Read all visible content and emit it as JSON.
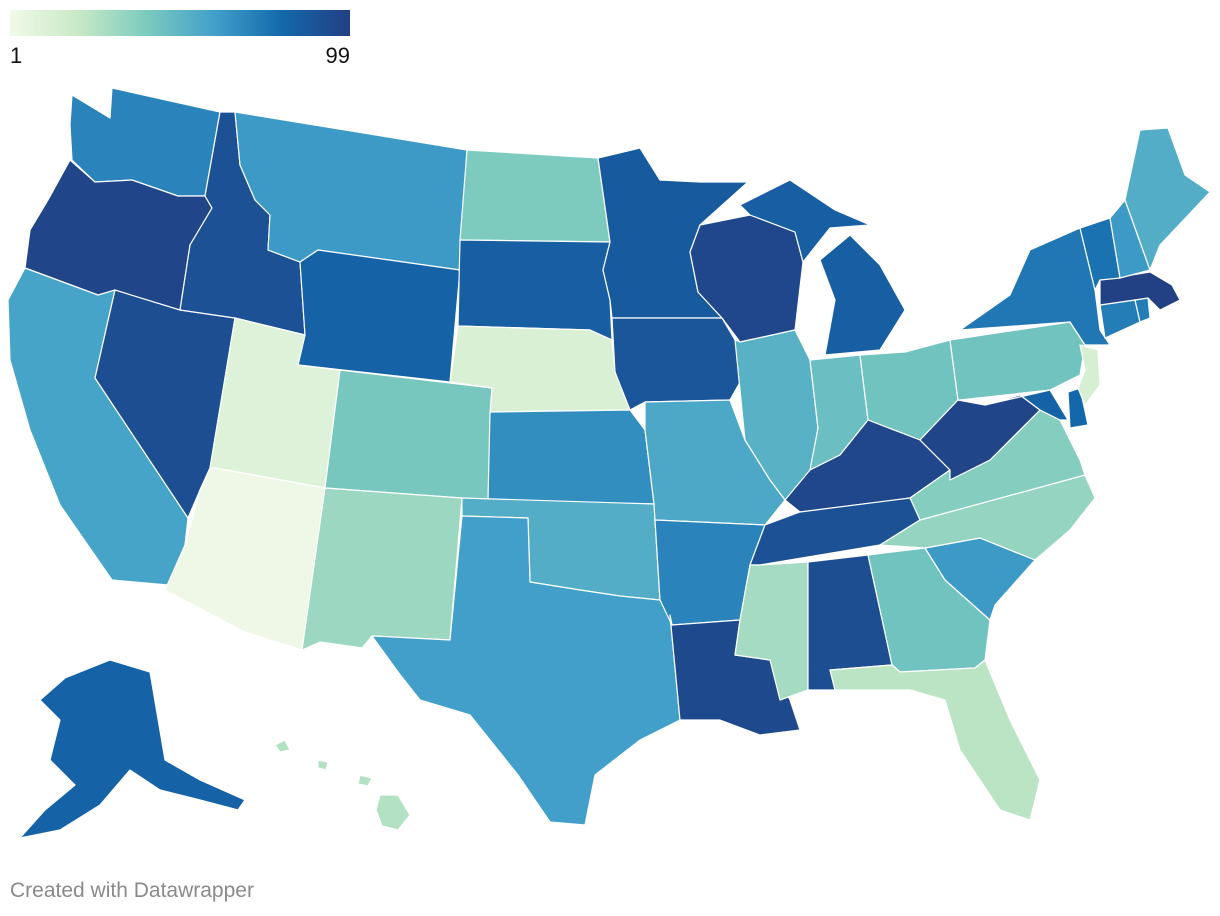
{
  "legend": {
    "min_label": "1",
    "max_label": "99",
    "min": 1,
    "max": 99,
    "gradient": [
      "#f1f9e9",
      "#c8e9c6",
      "#7ccbbe",
      "#42a0ca",
      "#1368ab",
      "#233f83"
    ]
  },
  "credit": "Created with Datawrapper",
  "chart_data": {
    "type": "choropleth",
    "colors": [
      "#f1f9e9",
      "#c8e9c6",
      "#7ccbbe",
      "#42a0ca",
      "#1368ab",
      "#233f83"
    ],
    "values": {
      "WA": 70,
      "OR": 96,
      "CA": 58,
      "NV": 92,
      "ID": 90,
      "MT": 62,
      "WY": 82,
      "UT": 10,
      "AZ": 2,
      "CO": 42,
      "NM": 32,
      "ND": 40,
      "SD": 84,
      "NE": 12,
      "KS": 66,
      "OK": 54,
      "TX": 60,
      "MN": 86,
      "IA": 88,
      "MO": 56,
      "AR": 70,
      "LA": 94,
      "WI": 95,
      "IL": 52,
      "MI": 84,
      "IN": 46,
      "OH": 44,
      "KY": 95,
      "TN": 90,
      "MS": 30,
      "AL": 92,
      "GA": 44,
      "FL": 24,
      "SC": 62,
      "NC": 34,
      "VA": 38,
      "WV": 96,
      "PA": 44,
      "NY": 74,
      "VT": 76,
      "NH": 62,
      "ME": 54,
      "MA": 98,
      "RI": 72,
      "CT": 72,
      "NJ": 14,
      "DE": 80,
      "MD": 82,
      "AK": 82,
      "HI": 26
    }
  }
}
